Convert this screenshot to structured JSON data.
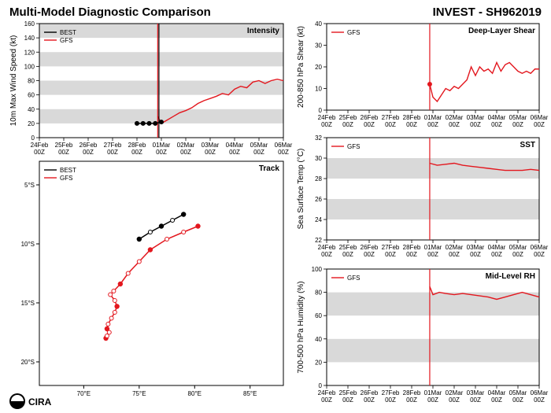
{
  "title_left": "Multi-Model Diagnostic Comparison",
  "title_right": "INVEST - SH962019",
  "logo_text": "CIRA",
  "title_fontsize": 15,
  "background_color": "#ffffff",
  "band_color": "#d9d9d9",
  "axis_color": "#000000",
  "grid_color": "#d9d9d9",
  "tick_fontsize": 8,
  "label_fontsize": 10,
  "panel_label_fontsize": 10,
  "legend_fontsize": 8,
  "now_line_color": "#e3171e",
  "series": {
    "BEST": {
      "color": "#000000",
      "label": "BEST"
    },
    "GFS": {
      "color": "#e3171e",
      "label": "GFS"
    }
  },
  "time_axis": {
    "ticks": [
      "24Feb\n00Z",
      "25Feb\n00Z",
      "26Feb\n00Z",
      "27Feb\n00Z",
      "28Feb\n00Z",
      "01Mar\n00Z",
      "02Mar\n00Z",
      "03Mar\n00Z",
      "04Mar\n00Z",
      "05Mar\n00Z",
      "06Mar\n00Z"
    ],
    "xlim": [
      0,
      10
    ],
    "now": 4.85
  },
  "intensity": {
    "title": "Intensity",
    "ylabel": "10m Max Wind Speed (kt)",
    "ylim": [
      0,
      160
    ],
    "ytick_step": 20,
    "bands": [
      [
        20,
        40
      ],
      [
        60,
        80
      ],
      [
        100,
        120
      ],
      [
        140,
        160
      ]
    ],
    "best_vertical_at": 4.9,
    "best": [
      [
        4.0,
        20
      ],
      [
        4.25,
        20
      ],
      [
        4.5,
        20
      ],
      [
        4.75,
        20
      ],
      [
        5.0,
        22
      ]
    ],
    "gfs": [
      [
        4.85,
        30
      ],
      [
        5.0,
        20
      ],
      [
        5.25,
        25
      ],
      [
        5.5,
        30
      ],
      [
        5.75,
        35
      ],
      [
        6.0,
        38
      ],
      [
        6.25,
        42
      ],
      [
        6.5,
        48
      ],
      [
        6.75,
        52
      ],
      [
        7.0,
        55
      ],
      [
        7.25,
        58
      ],
      [
        7.5,
        62
      ],
      [
        7.75,
        60
      ],
      [
        8.0,
        68
      ],
      [
        8.25,
        72
      ],
      [
        8.5,
        70
      ],
      [
        8.75,
        78
      ],
      [
        9.0,
        80
      ],
      [
        9.25,
        76
      ],
      [
        9.5,
        80
      ],
      [
        9.75,
        82
      ],
      [
        10.0,
        80
      ]
    ]
  },
  "track": {
    "title": "Track",
    "xlabel": "",
    "ylabel": "",
    "xlim": [
      66,
      88
    ],
    "ylim": [
      22,
      3
    ],
    "xticks": [
      70,
      75,
      80,
      85
    ],
    "yticks": [
      5,
      10,
      15,
      20
    ],
    "xticklabels": [
      "70°E",
      "75°E",
      "80°E",
      "85°E"
    ],
    "yticklabels": [
      "5°S",
      "10°S",
      "15°S",
      "20°S"
    ],
    "best": [
      [
        79.0,
        7.5
      ],
      [
        78.0,
        8.0
      ],
      [
        77.0,
        8.5
      ],
      [
        76.0,
        9.0
      ],
      [
        75.0,
        9.6
      ]
    ],
    "gfs": [
      [
        80.3,
        8.5
      ],
      [
        79.0,
        9.0
      ],
      [
        77.5,
        9.6
      ],
      [
        76.0,
        10.5
      ],
      [
        75.0,
        11.5
      ],
      [
        74.0,
        12.5
      ],
      [
        73.3,
        13.4
      ],
      [
        72.7,
        14.0
      ],
      [
        72.4,
        14.3
      ],
      [
        72.8,
        14.8
      ],
      [
        73.0,
        15.3
      ],
      [
        72.8,
        15.8
      ],
      [
        72.5,
        16.3
      ],
      [
        72.2,
        16.8
      ],
      [
        72.1,
        17.2
      ],
      [
        72.3,
        17.5
      ],
      [
        72.1,
        17.8
      ],
      [
        72.0,
        18.0
      ]
    ],
    "marker_major_idx_best": [
      0,
      2,
      4
    ],
    "marker_minor_idx_best": [
      1,
      3
    ],
    "marker_major_idx_gfs": [
      0,
      3,
      6,
      10,
      14,
      17
    ],
    "marker_minor_idx_gfs": [
      1,
      2,
      4,
      5,
      7,
      8,
      9,
      11,
      12,
      13,
      15,
      16
    ]
  },
  "shear": {
    "title": "Deep-Layer Shear",
    "ylabel": "200-850 hPa Shear (kt)",
    "ylim": [
      0,
      40
    ],
    "ytick_step": 10,
    "bands": [],
    "gfs": [
      [
        4.85,
        12
      ],
      [
        5.0,
        6
      ],
      [
        5.2,
        4
      ],
      [
        5.4,
        7
      ],
      [
        5.6,
        10
      ],
      [
        5.8,
        9
      ],
      [
        6.0,
        11
      ],
      [
        6.2,
        10
      ],
      [
        6.4,
        12
      ],
      [
        6.6,
        14
      ],
      [
        6.8,
        20
      ],
      [
        7.0,
        16
      ],
      [
        7.2,
        20
      ],
      [
        7.4,
        18
      ],
      [
        7.6,
        19
      ],
      [
        7.8,
        17
      ],
      [
        8.0,
        22
      ],
      [
        8.2,
        18
      ],
      [
        8.4,
        21
      ],
      [
        8.6,
        22
      ],
      [
        8.8,
        20
      ],
      [
        9.0,
        18
      ],
      [
        9.2,
        17
      ],
      [
        9.4,
        18
      ],
      [
        9.6,
        17
      ],
      [
        9.8,
        19
      ],
      [
        10.0,
        19
      ]
    ],
    "now_marker_y": 12
  },
  "sst": {
    "title": "SST",
    "ylabel": "Sea Surface Temp (°C)",
    "ylim": [
      22,
      32
    ],
    "ytick_step": 2,
    "bands": [
      [
        24,
        26
      ],
      [
        28,
        30
      ]
    ],
    "gfs": [
      [
        4.85,
        29.5
      ],
      [
        5.2,
        29.3
      ],
      [
        5.6,
        29.4
      ],
      [
        6.0,
        29.5
      ],
      [
        6.4,
        29.3
      ],
      [
        6.8,
        29.2
      ],
      [
        7.2,
        29.1
      ],
      [
        7.6,
        29.0
      ],
      [
        8.0,
        28.9
      ],
      [
        8.4,
        28.8
      ],
      [
        8.8,
        28.8
      ],
      [
        9.2,
        28.8
      ],
      [
        9.6,
        28.9
      ],
      [
        10.0,
        28.8
      ]
    ]
  },
  "rh": {
    "title": "Mid-Level RH",
    "ylabel": "700-500 hPa Humidity (%)",
    "ylim": [
      0,
      100
    ],
    "ytick_step": 20,
    "bands": [
      [
        20,
        40
      ],
      [
        60,
        80
      ]
    ],
    "gfs": [
      [
        4.85,
        85
      ],
      [
        5.0,
        78
      ],
      [
        5.3,
        80
      ],
      [
        5.6,
        79
      ],
      [
        6.0,
        78
      ],
      [
        6.4,
        79
      ],
      [
        6.8,
        78
      ],
      [
        7.2,
        77
      ],
      [
        7.6,
        76
      ],
      [
        8.0,
        74
      ],
      [
        8.4,
        76
      ],
      [
        8.8,
        78
      ],
      [
        9.2,
        80
      ],
      [
        9.6,
        78
      ],
      [
        10.0,
        76
      ]
    ]
  }
}
